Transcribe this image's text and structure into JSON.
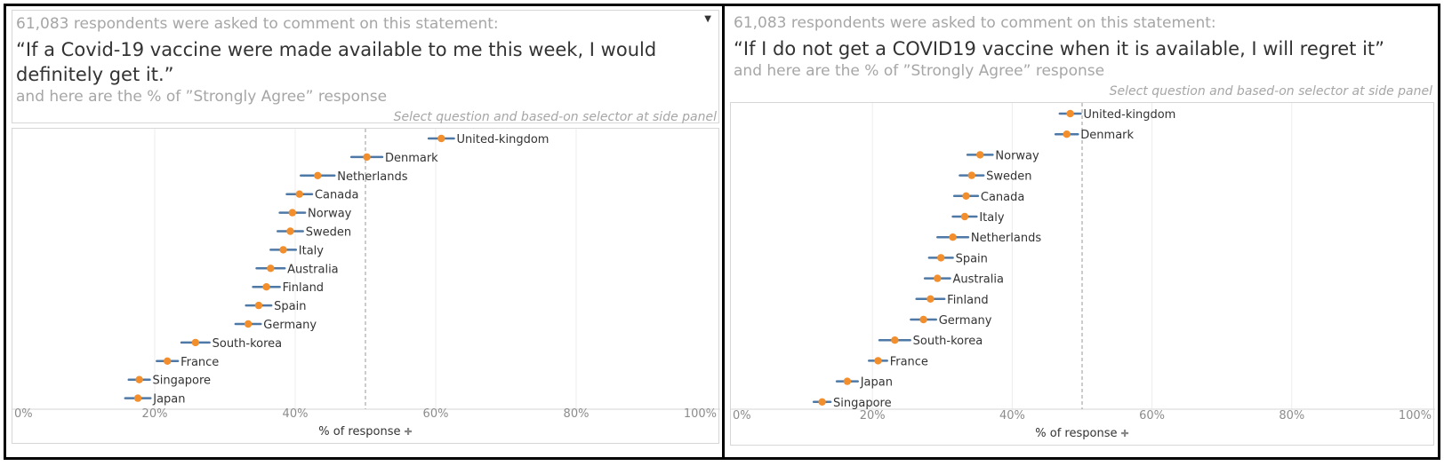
{
  "panels": [
    {
      "intro": "61,083 respondents were asked to comment on this statement:",
      "statement": "“If a Covid-19 vaccine were made available to me this week, I would definitely get it.”",
      "subtitle": "and here are the % of ”Strongly Agree” response",
      "hint": "Select question and based-on selector at side panel",
      "dropdown_icon": "dropdown-arrow-icon",
      "xlabel": "% of response",
      "pin_icon": "pin-icon"
    },
    {
      "intro": "61,083 respondents were asked to comment on this statement:",
      "statement": "“If I do not get a COVID19 vaccine when it is available, I will regret it”",
      "subtitle": "and here are the % of ”Strongly Agree” response",
      "hint": "Select question and based-on selector at side panel",
      "xlabel": "% of response",
      "pin_icon": "pin-icon"
    }
  ],
  "chart_data": [
    {
      "type": "scatter",
      "xlabel": "% of response",
      "xlim": [
        0,
        100
      ],
      "xticks": [
        "0%",
        "20%",
        "40%",
        "60%",
        "80%",
        "100%"
      ],
      "reference_line": 50,
      "colors": {
        "point": "#f28e2b",
        "interval": "#4e79a7",
        "reference": "#999999"
      },
      "categories": [
        "United-kingdom",
        "Denmark",
        "Netherlands",
        "Canada",
        "Norway",
        "Sweden",
        "Italy",
        "Australia",
        "Finland",
        "Spain",
        "Germany",
        "South-korea",
        "France",
        "Singapore",
        "Japan"
      ],
      "values": [
        60.8,
        50.2,
        43.2,
        40.6,
        39.6,
        39.3,
        38.3,
        36.5,
        35.9,
        34.8,
        33.3,
        25.8,
        21.8,
        17.8,
        17.6
      ],
      "ci_low": [
        59.0,
        48.0,
        40.8,
        38.8,
        37.8,
        37.5,
        36.5,
        34.5,
        34.0,
        33.0,
        31.5,
        23.8,
        20.3,
        16.3,
        15.8
      ],
      "ci_high": [
        62.6,
        52.4,
        45.6,
        42.4,
        41.4,
        41.1,
        40.1,
        38.5,
        37.8,
        36.6,
        35.1,
        27.8,
        23.3,
        19.3,
        19.4
      ]
    },
    {
      "type": "scatter",
      "xlabel": "% of response",
      "xlim": [
        0,
        100
      ],
      "xticks": [
        "0%",
        "20%",
        "40%",
        "60%",
        "80%",
        "100%"
      ],
      "reference_line": 50,
      "colors": {
        "point": "#f28e2b",
        "interval": "#4e79a7",
        "reference": "#999999"
      },
      "categories": [
        "United-kingdom",
        "Denmark",
        "Norway",
        "Sweden",
        "Canada",
        "Italy",
        "Netherlands",
        "Spain",
        "Australia",
        "Finland",
        "Germany",
        "South-korea",
        "France",
        "Japan",
        "Singapore"
      ],
      "values": [
        48.3,
        47.8,
        35.4,
        34.2,
        33.4,
        33.2,
        31.5,
        29.8,
        29.3,
        28.3,
        27.3,
        23.2,
        20.8,
        16.4,
        12.8
      ],
      "ci_low": [
        46.8,
        46.2,
        33.6,
        32.5,
        31.7,
        31.5,
        29.3,
        28.1,
        27.5,
        26.3,
        25.5,
        21.0,
        19.5,
        14.9,
        11.6
      ],
      "ci_high": [
        49.8,
        49.4,
        37.2,
        35.9,
        35.1,
        34.9,
        33.7,
        31.5,
        31.1,
        30.3,
        29.1,
        25.4,
        22.1,
        17.9,
        14.0
      ]
    }
  ]
}
